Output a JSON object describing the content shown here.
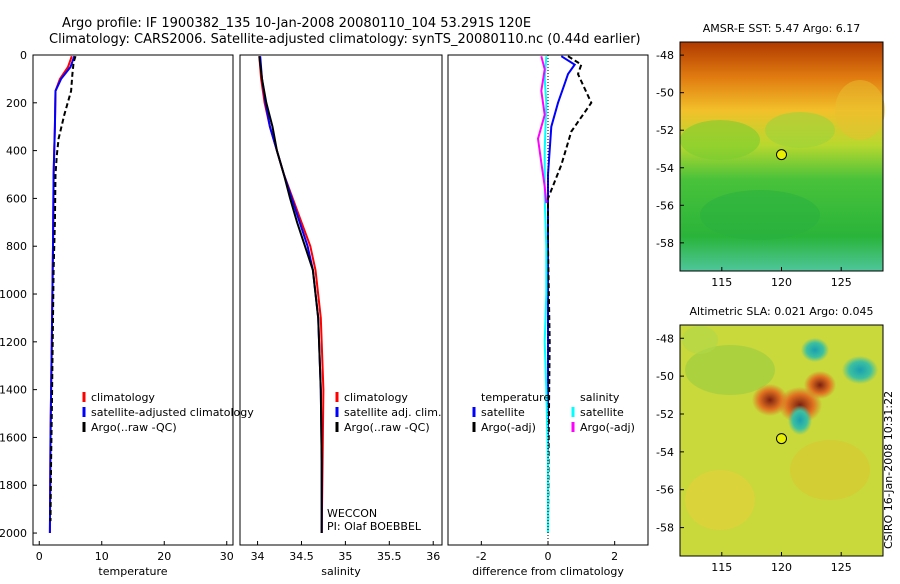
{
  "header": {
    "line1": "Argo profile: IF 1900382_135 10-Jan-2008 20080110_104 53.291S 120E",
    "line2": "Climatology: CARS2006. Satellite-adjusted climatology: synTS_20080110.nc (0.44d earlier)"
  },
  "side_text": "CSIRO 16-Jan-2008 10:31:22",
  "colors": {
    "red": "#ff0000",
    "blue": "#0000ff",
    "black": "#000000",
    "cyan": "#00ffff",
    "magenta": "#ff00ff"
  },
  "chart_data": [
    {
      "type": "line",
      "xlabel": "temperature",
      "ylabel": "",
      "xlim": [
        -1,
        31
      ],
      "ylim": [
        2050,
        0
      ],
      "x_ticks": [
        "0",
        "10",
        "20",
        "30"
      ],
      "x_tick_values": [
        0,
        10,
        20,
        30
      ],
      "y_ticks": [
        "0",
        "200",
        "400",
        "600",
        "800",
        "1000",
        "1200",
        "1400",
        "1600",
        "1800",
        "2000"
      ],
      "y_tick_values": [
        0,
        200,
        400,
        600,
        800,
        1000,
        1200,
        1400,
        1600,
        1800,
        2000
      ],
      "legend": [
        "climatology",
        "satellite-adjusted climatology",
        "Argo(..raw -QC)"
      ],
      "legend_position": "lower-right",
      "series": [
        {
          "name": "climatology",
          "color": "red",
          "dashed": false,
          "x": [
            5.2,
            4.6,
            3.3,
            2.6,
            2.5,
            2.3,
            2.2,
            2.1,
            2.0,
            1.9,
            1.8,
            1.75,
            1.7
          ],
          "y": [
            5,
            50,
            100,
            150,
            300,
            500,
            800,
            1000,
            1200,
            1400,
            1600,
            1800,
            2000
          ]
        },
        {
          "name": "satellite-adjusted climatology",
          "color": "blue",
          "dashed": false,
          "x": [
            5.6,
            5.0,
            3.5,
            2.6,
            2.5,
            2.3,
            2.2,
            2.1,
            2.0,
            1.9,
            1.8,
            1.75,
            1.7
          ],
          "y": [
            5,
            50,
            100,
            150,
            300,
            500,
            800,
            1000,
            1200,
            1400,
            1600,
            1800,
            2000
          ]
        },
        {
          "name": "Argo(..raw -QC)",
          "color": "black",
          "dashed": true,
          "x": [
            5.8,
            5.5,
            5.3,
            5.1,
            4.0,
            3.1,
            2.8,
            2.6,
            2.5,
            2.3,
            2.2,
            2.1,
            2.0,
            1.9,
            1.8
          ],
          "y": [
            5,
            30,
            80,
            150,
            250,
            350,
            420,
            500,
            700,
            900,
            1100,
            1300,
            1500,
            1700,
            1950
          ]
        }
      ]
    },
    {
      "type": "line",
      "xlabel": "salinity",
      "ylabel": "",
      "xlim": [
        33.8,
        36.1
      ],
      "ylim": [
        2050,
        0
      ],
      "x_ticks": [
        "34",
        "34.5",
        "35",
        "35.5",
        "36"
      ],
      "x_tick_values": [
        34,
        34.5,
        35,
        35.5,
        36
      ],
      "legend": [
        "climatology",
        "satellite adj. clim.",
        "Argo(..raw -QC)"
      ],
      "legend_position": "lower-right",
      "annotations": [
        "WECCON",
        "PI: Olaf BOEBBEL"
      ],
      "series": [
        {
          "name": "climatology",
          "color": "red",
          "dashed": false,
          "x": [
            34.02,
            34.04,
            34.08,
            34.14,
            34.22,
            34.3,
            34.4,
            34.5,
            34.6,
            34.66,
            34.72,
            34.75,
            34.74,
            34.73
          ],
          "y": [
            5,
            100,
            200,
            300,
            400,
            500,
            600,
            700,
            800,
            900,
            1100,
            1400,
            1700,
            2000
          ]
        },
        {
          "name": "satellite adj. clim.",
          "color": "blue",
          "dashed": false,
          "x": [
            34.03,
            34.05,
            34.09,
            34.14,
            34.22,
            34.3,
            34.39,
            34.48,
            34.57,
            34.63,
            34.69,
            34.72,
            34.73,
            34.73
          ],
          "y": [
            5,
            100,
            200,
            300,
            400,
            500,
            600,
            700,
            800,
            900,
            1100,
            1400,
            1700,
            2000
          ]
        },
        {
          "name": "Argo(..raw -QC)",
          "color": "black",
          "dashed": false,
          "x": [
            34.02,
            34.05,
            34.1,
            34.17,
            34.22,
            34.3,
            34.37,
            34.45,
            34.54,
            34.63,
            34.69,
            34.72,
            34.73,
            34.73
          ],
          "y": [
            5,
            100,
            200,
            300,
            400,
            500,
            600,
            700,
            800,
            900,
            1100,
            1400,
            1700,
            2000
          ]
        }
      ]
    },
    {
      "type": "line",
      "xlabel": "difference from climatology",
      "ylabel": "",
      "xlim": [
        -3,
        3
      ],
      "ylim": [
        2050,
        0
      ],
      "x_ticks": [
        "-2",
        "0",
        "2"
      ],
      "x_tick_values": [
        -2,
        0,
        2
      ],
      "legend_headings": [
        "temperature",
        "salinity"
      ],
      "legend": [
        "satellite",
        "Argo(-adj)",
        "satellite",
        "Argo(-adj)"
      ],
      "legend_position": "lower-right",
      "series": [
        {
          "name": "temperature satellite",
          "color": "blue",
          "dashed": false,
          "x": [
            0.4,
            0.8,
            0.6,
            0.5,
            0.3,
            0.1,
            0.0,
            0.0,
            0.0,
            0.0,
            0.0
          ],
          "y": [
            5,
            40,
            80,
            120,
            200,
            300,
            500,
            800,
            1200,
            1600,
            2000
          ]
        },
        {
          "name": "temperature Argo(-adj)",
          "color": "black",
          "dashed": true,
          "x": [
            0.6,
            1.0,
            0.9,
            1.3,
            0.7,
            0.4,
            0.0,
            0.0,
            0.05,
            0.02,
            0.0
          ],
          "y": [
            5,
            40,
            80,
            200,
            320,
            460,
            600,
            800,
            1200,
            1600,
            2000
          ]
        },
        {
          "name": "salinity satellite",
          "color": "cyan",
          "dashed": false,
          "x": [
            -0.05,
            -0.1,
            -0.05,
            -0.1,
            -0.1,
            -0.05,
            -0.05,
            -0.1,
            -0.05,
            0.0,
            0.0
          ],
          "y": [
            5,
            100,
            200,
            400,
            600,
            800,
            1000,
            1200,
            1400,
            1700,
            2000
          ]
        },
        {
          "name": "salinity Argo(-adj)",
          "color": "magenta",
          "dashed": false,
          "x": [
            -0.2,
            -0.1,
            -0.2,
            -0.1,
            -0.3,
            -0.2,
            -0.1,
            -0.05
          ],
          "y": [
            5,
            60,
            150,
            250,
            350,
            450,
            550,
            620
          ]
        }
      ]
    },
    {
      "type": "heatmap",
      "title": "AMSR-E SST: 5.47 Argo: 6.17",
      "xlim": [
        111.5,
        128.5
      ],
      "ylim": [
        -59.5,
        -47.3
      ],
      "x_ticks": [
        "115",
        "120",
        "125"
      ],
      "x_tick_values": [
        115,
        120,
        125
      ],
      "y_ticks": [
        "-48",
        "-50",
        "-52",
        "-54",
        "-56",
        "-58"
      ],
      "y_tick_values": [
        -48,
        -50,
        -52,
        -54,
        -56,
        -58
      ],
      "marker": {
        "lon": 120,
        "lat": -53.3
      }
    },
    {
      "type": "heatmap",
      "title": "Altimetric SLA: 0.021 Argo: 0.045",
      "xlim": [
        111.5,
        128.5
      ],
      "ylim": [
        -59.5,
        -47.3
      ],
      "x_ticks": [
        "115",
        "120",
        "125"
      ],
      "x_tick_values": [
        115,
        120,
        125
      ],
      "y_ticks": [
        "-48",
        "-50",
        "-52",
        "-54",
        "-56",
        "-58"
      ],
      "y_tick_values": [
        -48,
        -50,
        -52,
        -54,
        -56,
        -58
      ],
      "marker": {
        "lon": 120,
        "lat": -53.3
      }
    }
  ]
}
